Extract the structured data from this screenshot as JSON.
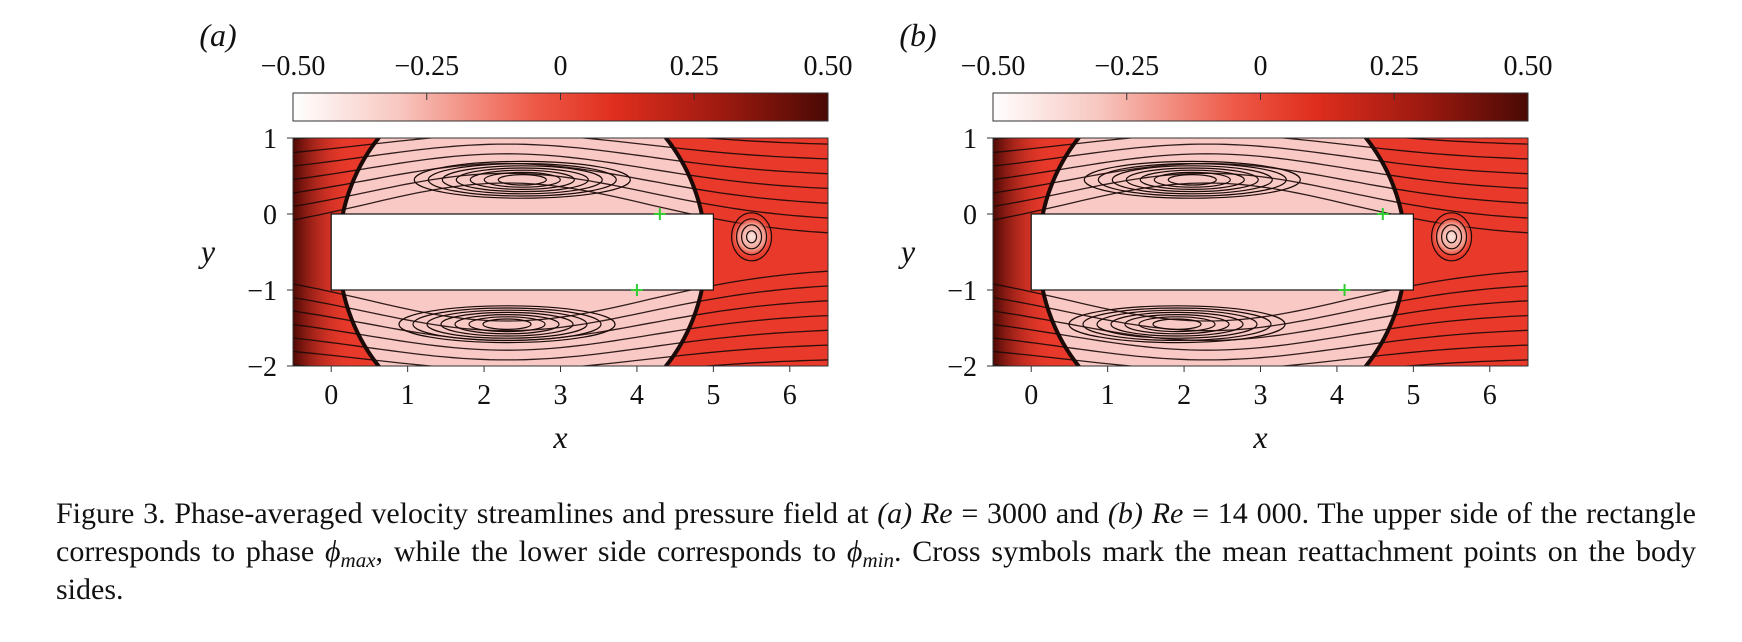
{
  "figure": {
    "panels": [
      {
        "label": "(a)",
        "colorbar_ticks": [
          "−0.50",
          "−0.25",
          "0",
          "0.25",
          "0.50"
        ],
        "xlabel": "x",
        "ylabel": "y",
        "x_ticks": [
          "0",
          "1",
          "2",
          "3",
          "4",
          "5",
          "6"
        ],
        "y_ticks": [
          "1",
          "0",
          "−1",
          "−2"
        ]
      },
      {
        "label": "(b)",
        "colorbar_ticks": [
          "−0.50",
          "−0.25",
          "0",
          "0.25",
          "0.50"
        ],
        "xlabel": "x",
        "ylabel": "y",
        "x_ticks": [
          "0",
          "1",
          "2",
          "3",
          "4",
          "5",
          "6"
        ],
        "y_ticks": [
          "1",
          "0",
          "−1",
          "−2"
        ]
      }
    ],
    "colors": {
      "field_red": "#e8392a",
      "field_dark": "#5a0a05",
      "field_light": "#fbe4e0",
      "cross_marker": "#33cc33",
      "streamline": "#1a0a08"
    }
  },
  "chart_data": [
    {
      "type": "heatmap",
      "title": "(a)",
      "xlabel": "x",
      "ylabel": "y",
      "xlim": [
        -0.5,
        6.5
      ],
      "ylim": [
        -2,
        1
      ],
      "colorbar": {
        "range": [
          -0.5,
          0.5
        ],
        "ticks": [
          -0.5,
          -0.25,
          0,
          0.25,
          0.5
        ],
        "colormap": "white-to-red-to-dark-red"
      },
      "body": {
        "x": [
          0,
          5
        ],
        "y": [
          -1,
          0
        ]
      },
      "reattachment_points": [
        {
          "x": 4.3,
          "y": 0
        },
        {
          "x": 4.0,
          "y": -1
        }
      ]
    },
    {
      "type": "heatmap",
      "title": "(b)",
      "xlabel": "x",
      "ylabel": "y",
      "xlim": [
        -0.5,
        6.5
      ],
      "ylim": [
        -2,
        1
      ],
      "colorbar": {
        "range": [
          -0.5,
          0.5
        ],
        "ticks": [
          -0.5,
          -0.25,
          0,
          0.25,
          0.5
        ],
        "colormap": "white-to-red-to-dark-red"
      },
      "body": {
        "x": [
          0,
          5
        ],
        "y": [
          -1,
          0
        ]
      },
      "reattachment_points": [
        {
          "x": 4.6,
          "y": 0
        },
        {
          "x": 4.1,
          "y": -1
        }
      ]
    }
  ],
  "caption": {
    "p1": "Figure 3. Phase-averaged velocity streamlines and pressure field at ",
    "a_label": "(a)",
    "re_symbol": "Re",
    "eq1": " = 3000 and ",
    "b_label": "(b)",
    "eq2": " = 14 000. The upper side of the rectangle corresponds to phase ",
    "phi": "ϕ",
    "sub_max": "max",
    "mid": ", while the lower side corresponds to ",
    "sub_min": "min",
    "end": ". Cross symbols mark the mean reattachment points on the body sides."
  }
}
